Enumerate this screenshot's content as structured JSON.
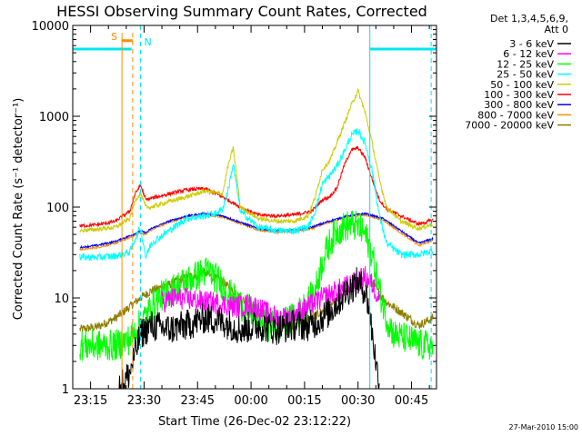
{
  "chart_data": {
    "type": "line",
    "title": "HESSI Observing Summary Count Rates, Corrected",
    "xlabel": "Start Time (26-Dec-02 23:12:22)",
    "ylabel": "Corrected Count Rate (s⁻¹ detector⁻¹)",
    "yscale": "log",
    "ylim": [
      1,
      10000
    ],
    "xlim_minutes": [
      -2,
      100
    ],
    "x_ticks": [
      "23:15",
      "23:30",
      "23:45",
      "00:00",
      "00:15",
      "00:30",
      "00:45"
    ],
    "x_tick_minutes": [
      3,
      18,
      33,
      48,
      63,
      78,
      93
    ],
    "y_ticks": [
      "1",
      "10",
      "100",
      "1000",
      "10000"
    ],
    "y_tick_values": [
      1,
      10,
      100,
      1000,
      10000
    ],
    "legend_header": [
      "Det 1,3,4,5,6,9,",
      "Att 0"
    ],
    "legend_placement": "right",
    "annotations": {
      "saa_label": "S",
      "night_label": "N",
      "footer": "27-Mar-2010 15:00"
    },
    "flag_bar": {
      "color": "#00e5ee",
      "level": 5500,
      "segments": [
        [
          -2,
          14.5
        ],
        [
          81.3,
          100
        ]
      ]
    },
    "saa_interval": {
      "color": "#ff8c00",
      "start": 11.8,
      "end": 14.8,
      "level": 6800
    },
    "night_boundaries": [
      17.0,
      98.5
    ],
    "solid_markers": [
      {
        "x": 81.3,
        "color": "#00e5ee"
      },
      {
        "x": -2,
        "color": "#00e5ee"
      }
    ],
    "series": [
      {
        "name": "3 - 6 keV",
        "color": "#000000",
        "noise": 0.35,
        "x": [
          11,
          14,
          17,
          20,
          25,
          30,
          35,
          40,
          45,
          50,
          55,
          60,
          65,
          70,
          75,
          78,
          80,
          81,
          82,
          83,
          84
        ],
        "values": [
          1,
          1.5,
          4,
          5,
          4.5,
          5,
          6,
          5.5,
          4.5,
          5,
          4.5,
          5,
          5,
          7,
          12,
          15,
          12,
          8,
          4,
          2,
          1
        ]
      },
      {
        "name": "6 - 12 keV",
        "color": "#ff00ff",
        "noise": 0.25,
        "x": [
          23,
          27,
          32,
          36,
          40,
          44,
          48,
          52,
          56,
          60,
          64,
          68,
          72,
          76,
          80,
          82,
          84
        ],
        "values": [
          9,
          10,
          9.5,
          9,
          8.5,
          8,
          8.5,
          7,
          6,
          6.5,
          8,
          10,
          12,
          14,
          17,
          14,
          10
        ]
      },
      {
        "name": "12 - 25 keV",
        "color": "#00ff00",
        "noise": 0.35,
        "x": [
          0,
          5,
          10,
          14,
          18,
          22,
          28,
          32,
          36,
          40,
          44,
          48,
          52,
          56,
          60,
          64,
          66,
          68,
          70,
          72,
          74,
          76,
          78,
          80,
          82,
          84,
          86,
          88,
          92,
          96,
          99
        ],
        "values": [
          3,
          3,
          3,
          3.5,
          6,
          10,
          14,
          17,
          20,
          14,
          9,
          7,
          5,
          5,
          6,
          9,
          12,
          25,
          40,
          55,
          60,
          65,
          60,
          50,
          30,
          12,
          6,
          4,
          3.5,
          3,
          3
        ]
      },
      {
        "name": "25 - 50 keV",
        "color": "#00ffff",
        "noise": 0.08,
        "x": [
          0,
          5,
          10,
          14,
          15.5,
          17,
          18.5,
          20,
          25,
          30,
          35,
          38,
          40,
          41.5,
          43,
          45,
          50,
          55,
          60,
          64,
          66,
          68,
          70,
          72,
          74,
          76,
          78,
          80,
          82,
          84,
          86,
          90,
          95,
          99
        ],
        "values": [
          28,
          28,
          29,
          32,
          45,
          60,
          28,
          40,
          55,
          75,
          80,
          85,
          95,
          150,
          300,
          90,
          60,
          55,
          55,
          60,
          90,
          180,
          220,
          280,
          400,
          600,
          700,
          500,
          250,
          80,
          40,
          30,
          30,
          33
        ]
      },
      {
        "name": "50 - 100 keV",
        "color": "#cccc00",
        "noise": 0.05,
        "x": [
          0,
          5,
          10,
          14,
          15.5,
          17,
          18.5,
          20,
          25,
          30,
          35,
          40,
          41.5,
          43,
          45,
          50,
          55,
          60,
          64,
          66,
          68,
          70,
          72,
          74,
          76,
          78,
          80,
          82,
          84,
          86,
          90,
          95,
          99
        ],
        "values": [
          55,
          57,
          60,
          75,
          120,
          140,
          100,
          100,
          115,
          130,
          150,
          140,
          280,
          450,
          100,
          75,
          70,
          70,
          80,
          130,
          260,
          320,
          500,
          800,
          1300,
          1900,
          1100,
          500,
          200,
          100,
          70,
          58,
          65
        ]
      },
      {
        "name": "100 - 300 keV",
        "color": "#ff0000",
        "noise": 0.04,
        "x": [
          0,
          5,
          10,
          14,
          15.5,
          17,
          18.5,
          20,
          25,
          30,
          35,
          40,
          45,
          50,
          55,
          60,
          65,
          68,
          70,
          72,
          74,
          76,
          78,
          80,
          82,
          84,
          86,
          90,
          95,
          99
        ],
        "values": [
          62,
          64,
          70,
          90,
          140,
          175,
          120,
          125,
          140,
          155,
          160,
          130,
          100,
          82,
          80,
          82,
          90,
          120,
          130,
          160,
          280,
          420,
          450,
          350,
          200,
          120,
          95,
          80,
          65,
          72
        ]
      },
      {
        "name": "300 - 800 keV",
        "color": "#0000ff",
        "noise": 0.02,
        "x": [
          0,
          5,
          10,
          15,
          17,
          18.5,
          20,
          25,
          30,
          35,
          40,
          45,
          50,
          55,
          60,
          65,
          70,
          75,
          80,
          85,
          90,
          95,
          99
        ],
        "values": [
          36,
          38,
          42,
          50,
          55,
          52,
          58,
          70,
          80,
          85,
          80,
          68,
          58,
          55,
          56,
          60,
          70,
          80,
          85,
          75,
          55,
          40,
          45
        ]
      },
      {
        "name": "800 - 7000 keV",
        "color": "#ff8c00",
        "noise": 0.02,
        "x": [
          0,
          5,
          10,
          15,
          17,
          18.5,
          20,
          25,
          30,
          35,
          40,
          45,
          50,
          55,
          60,
          65,
          70,
          75,
          80,
          85,
          90,
          95,
          99
        ],
        "values": [
          34,
          36,
          40,
          48,
          52,
          50,
          56,
          68,
          78,
          82,
          78,
          66,
          56,
          53,
          54,
          58,
          68,
          78,
          82,
          72,
          52,
          38,
          43
        ]
      },
      {
        "name": "7000 - 20000 keV",
        "color": "#8b7d00",
        "noise": 0.1,
        "x": [
          0,
          5,
          10,
          14,
          17,
          20,
          25,
          30,
          35,
          40,
          45,
          50,
          55,
          60,
          65,
          70,
          75,
          78,
          80,
          82,
          84,
          86,
          90,
          95,
          99
        ],
        "values": [
          4.5,
          4.8,
          6,
          8,
          10,
          12,
          14,
          17,
          19,
          15,
          10,
          7,
          5.5,
          5,
          6,
          8,
          12,
          15,
          16,
          15,
          11,
          9,
          7,
          5,
          6
        ]
      }
    ]
  }
}
